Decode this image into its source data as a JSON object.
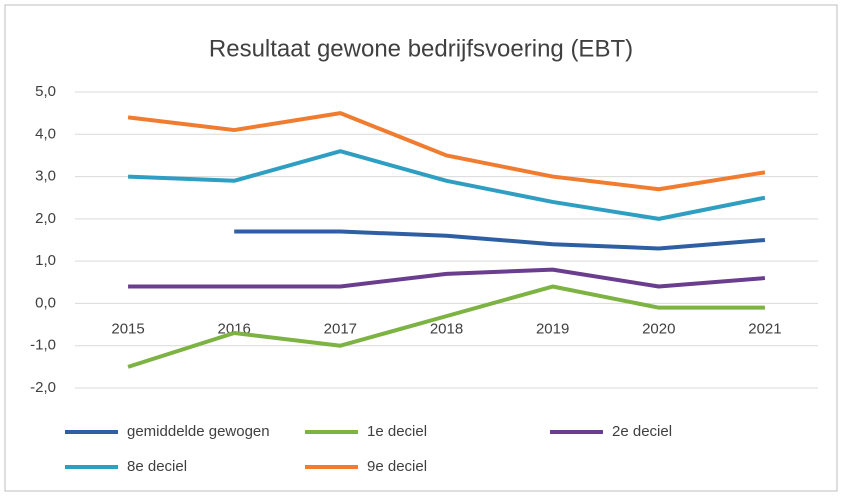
{
  "chart_data": {
    "type": "line",
    "title": "Resultaat gewone bedrijfsvoering (EBT)",
    "categories": [
      "2015",
      "2016",
      "2017",
      "2018",
      "2019",
      "2020",
      "2021"
    ],
    "series": [
      {
        "name": "gemiddelde gewogen",
        "color": "#2e5fa3",
        "values": [
          null,
          1.7,
          1.7,
          1.6,
          1.4,
          1.3,
          1.5
        ]
      },
      {
        "name": "1e deciel",
        "color": "#7cb342",
        "values": [
          -1.5,
          -0.7,
          -1.0,
          -0.3,
          0.4,
          -0.1,
          -0.1
        ]
      },
      {
        "name": "2e deciel",
        "color": "#6a3d8f",
        "values": [
          0.4,
          0.4,
          0.4,
          0.7,
          0.8,
          0.4,
          0.6
        ]
      },
      {
        "name": "8e deciel",
        "color": "#2e9fc2",
        "values": [
          3.0,
          2.9,
          3.6,
          2.9,
          2.4,
          2.0,
          2.5
        ]
      },
      {
        "name": "9e deciel",
        "color": "#f07c30",
        "values": [
          4.4,
          4.1,
          4.5,
          3.5,
          3.0,
          2.7,
          3.1
        ]
      }
    ],
    "ylim": [
      -2,
      5
    ],
    "yticks": [
      {
        "value": -2,
        "label": "-2,0"
      },
      {
        "value": -1,
        "label": "-1,0"
      },
      {
        "value": 0,
        "label": "0,0"
      },
      {
        "value": 1,
        "label": "1,0"
      },
      {
        "value": 2,
        "label": "2,0"
      },
      {
        "value": 3,
        "label": "3,0"
      },
      {
        "value": 4,
        "label": "4,0"
      },
      {
        "value": 5,
        "label": "5,0"
      }
    ],
    "grid": true
  }
}
